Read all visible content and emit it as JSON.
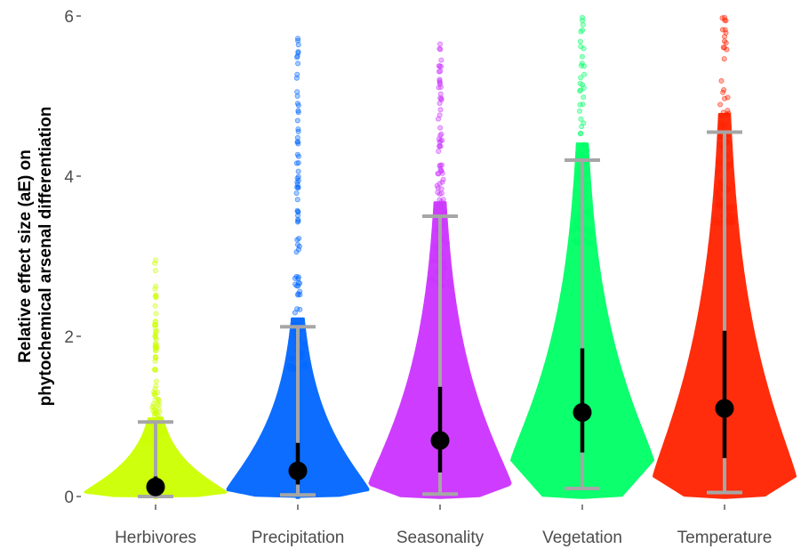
{
  "chart_data": {
    "type": "violin",
    "categories": [
      "Herbivores",
      "Precipitation",
      "Seasonality",
      "Vegetation",
      "Temperature"
    ],
    "colors": [
      "#ccff00",
      "#0066ff",
      "#cc33ff",
      "#00ff66",
      "#ff2200"
    ],
    "ylabel_lines": [
      "Relative effect size (aE) on",
      "phytochemical arsenal differentiation"
    ],
    "ylim": [
      0,
      6
    ],
    "yticks": [
      0,
      2,
      4,
      6
    ],
    "grid": false,
    "series": [
      {
        "name": "Herbivores",
        "median": 0.12,
        "q_low": 0.05,
        "q_high": 0.25,
        "ci_low": 0.0,
        "ci_high": 0.93,
        "max": 2.95,
        "mode": 0.05,
        "max_halfwidth": 0.45
      },
      {
        "name": "Precipitation",
        "median": 0.32,
        "q_low": 0.15,
        "q_high": 0.67,
        "ci_low": 0.02,
        "ci_high": 2.12,
        "max": 5.72,
        "mode": 0.08,
        "max_halfwidth": 0.45
      },
      {
        "name": "Seasonality",
        "median": 0.7,
        "q_low": 0.3,
        "q_high": 1.37,
        "ci_low": 0.03,
        "ci_high": 3.5,
        "max": 5.65,
        "mode": 0.15,
        "max_halfwidth": 0.45
      },
      {
        "name": "Vegetation",
        "median": 1.05,
        "q_low": 0.55,
        "q_high": 1.85,
        "ci_low": 0.1,
        "ci_high": 4.2,
        "max": 5.98,
        "mode": 0.45,
        "max_halfwidth": 0.45
      },
      {
        "name": "Temperature",
        "median": 1.1,
        "q_low": 0.48,
        "q_high": 2.07,
        "ci_low": 0.05,
        "ci_high": 4.55,
        "max": 5.98,
        "mode": 0.25,
        "max_halfwidth": 0.45
      }
    ]
  }
}
